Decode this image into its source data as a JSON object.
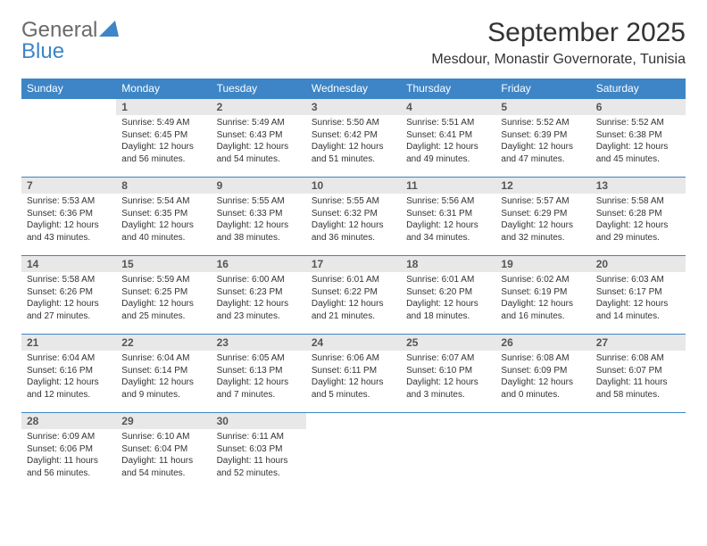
{
  "logo": {
    "general": "General",
    "blue": "Blue"
  },
  "brand_color": "#3d85c6",
  "header": {
    "month_title": "September 2025",
    "location": "Mesdour, Monastir Governorate, Tunisia"
  },
  "weekdays": [
    "Sunday",
    "Monday",
    "Tuesday",
    "Wednesday",
    "Thursday",
    "Friday",
    "Saturday"
  ],
  "rows": [
    [
      null,
      {
        "d": "1",
        "sr": "5:49 AM",
        "ss": "6:45 PM",
        "dl": "12 hours and 56 minutes."
      },
      {
        "d": "2",
        "sr": "5:49 AM",
        "ss": "6:43 PM",
        "dl": "12 hours and 54 minutes."
      },
      {
        "d": "3",
        "sr": "5:50 AM",
        "ss": "6:42 PM",
        "dl": "12 hours and 51 minutes."
      },
      {
        "d": "4",
        "sr": "5:51 AM",
        "ss": "6:41 PM",
        "dl": "12 hours and 49 minutes."
      },
      {
        "d": "5",
        "sr": "5:52 AM",
        "ss": "6:39 PM",
        "dl": "12 hours and 47 minutes."
      },
      {
        "d": "6",
        "sr": "5:52 AM",
        "ss": "6:38 PM",
        "dl": "12 hours and 45 minutes."
      }
    ],
    [
      {
        "d": "7",
        "sr": "5:53 AM",
        "ss": "6:36 PM",
        "dl": "12 hours and 43 minutes."
      },
      {
        "d": "8",
        "sr": "5:54 AM",
        "ss": "6:35 PM",
        "dl": "12 hours and 40 minutes."
      },
      {
        "d": "9",
        "sr": "5:55 AM",
        "ss": "6:33 PM",
        "dl": "12 hours and 38 minutes."
      },
      {
        "d": "10",
        "sr": "5:55 AM",
        "ss": "6:32 PM",
        "dl": "12 hours and 36 minutes."
      },
      {
        "d": "11",
        "sr": "5:56 AM",
        "ss": "6:31 PM",
        "dl": "12 hours and 34 minutes."
      },
      {
        "d": "12",
        "sr": "5:57 AM",
        "ss": "6:29 PM",
        "dl": "12 hours and 32 minutes."
      },
      {
        "d": "13",
        "sr": "5:58 AM",
        "ss": "6:28 PM",
        "dl": "12 hours and 29 minutes."
      }
    ],
    [
      {
        "d": "14",
        "sr": "5:58 AM",
        "ss": "6:26 PM",
        "dl": "12 hours and 27 minutes."
      },
      {
        "d": "15",
        "sr": "5:59 AM",
        "ss": "6:25 PM",
        "dl": "12 hours and 25 minutes."
      },
      {
        "d": "16",
        "sr": "6:00 AM",
        "ss": "6:23 PM",
        "dl": "12 hours and 23 minutes."
      },
      {
        "d": "17",
        "sr": "6:01 AM",
        "ss": "6:22 PM",
        "dl": "12 hours and 21 minutes."
      },
      {
        "d": "18",
        "sr": "6:01 AM",
        "ss": "6:20 PM",
        "dl": "12 hours and 18 minutes."
      },
      {
        "d": "19",
        "sr": "6:02 AM",
        "ss": "6:19 PM",
        "dl": "12 hours and 16 minutes."
      },
      {
        "d": "20",
        "sr": "6:03 AM",
        "ss": "6:17 PM",
        "dl": "12 hours and 14 minutes."
      }
    ],
    [
      {
        "d": "21",
        "sr": "6:04 AM",
        "ss": "6:16 PM",
        "dl": "12 hours and 12 minutes."
      },
      {
        "d": "22",
        "sr": "6:04 AM",
        "ss": "6:14 PM",
        "dl": "12 hours and 9 minutes."
      },
      {
        "d": "23",
        "sr": "6:05 AM",
        "ss": "6:13 PM",
        "dl": "12 hours and 7 minutes."
      },
      {
        "d": "24",
        "sr": "6:06 AM",
        "ss": "6:11 PM",
        "dl": "12 hours and 5 minutes."
      },
      {
        "d": "25",
        "sr": "6:07 AM",
        "ss": "6:10 PM",
        "dl": "12 hours and 3 minutes."
      },
      {
        "d": "26",
        "sr": "6:08 AM",
        "ss": "6:09 PM",
        "dl": "12 hours and 0 minutes."
      },
      {
        "d": "27",
        "sr": "6:08 AM",
        "ss": "6:07 PM",
        "dl": "11 hours and 58 minutes."
      }
    ],
    [
      {
        "d": "28",
        "sr": "6:09 AM",
        "ss": "6:06 PM",
        "dl": "11 hours and 56 minutes."
      },
      {
        "d": "29",
        "sr": "6:10 AM",
        "ss": "6:04 PM",
        "dl": "11 hours and 54 minutes."
      },
      {
        "d": "30",
        "sr": "6:11 AM",
        "ss": "6:03 PM",
        "dl": "11 hours and 52 minutes."
      },
      null,
      null,
      null,
      null
    ]
  ],
  "labels": {
    "sunrise": "Sunrise:",
    "sunset": "Sunset:",
    "daylight": "Daylight:"
  }
}
